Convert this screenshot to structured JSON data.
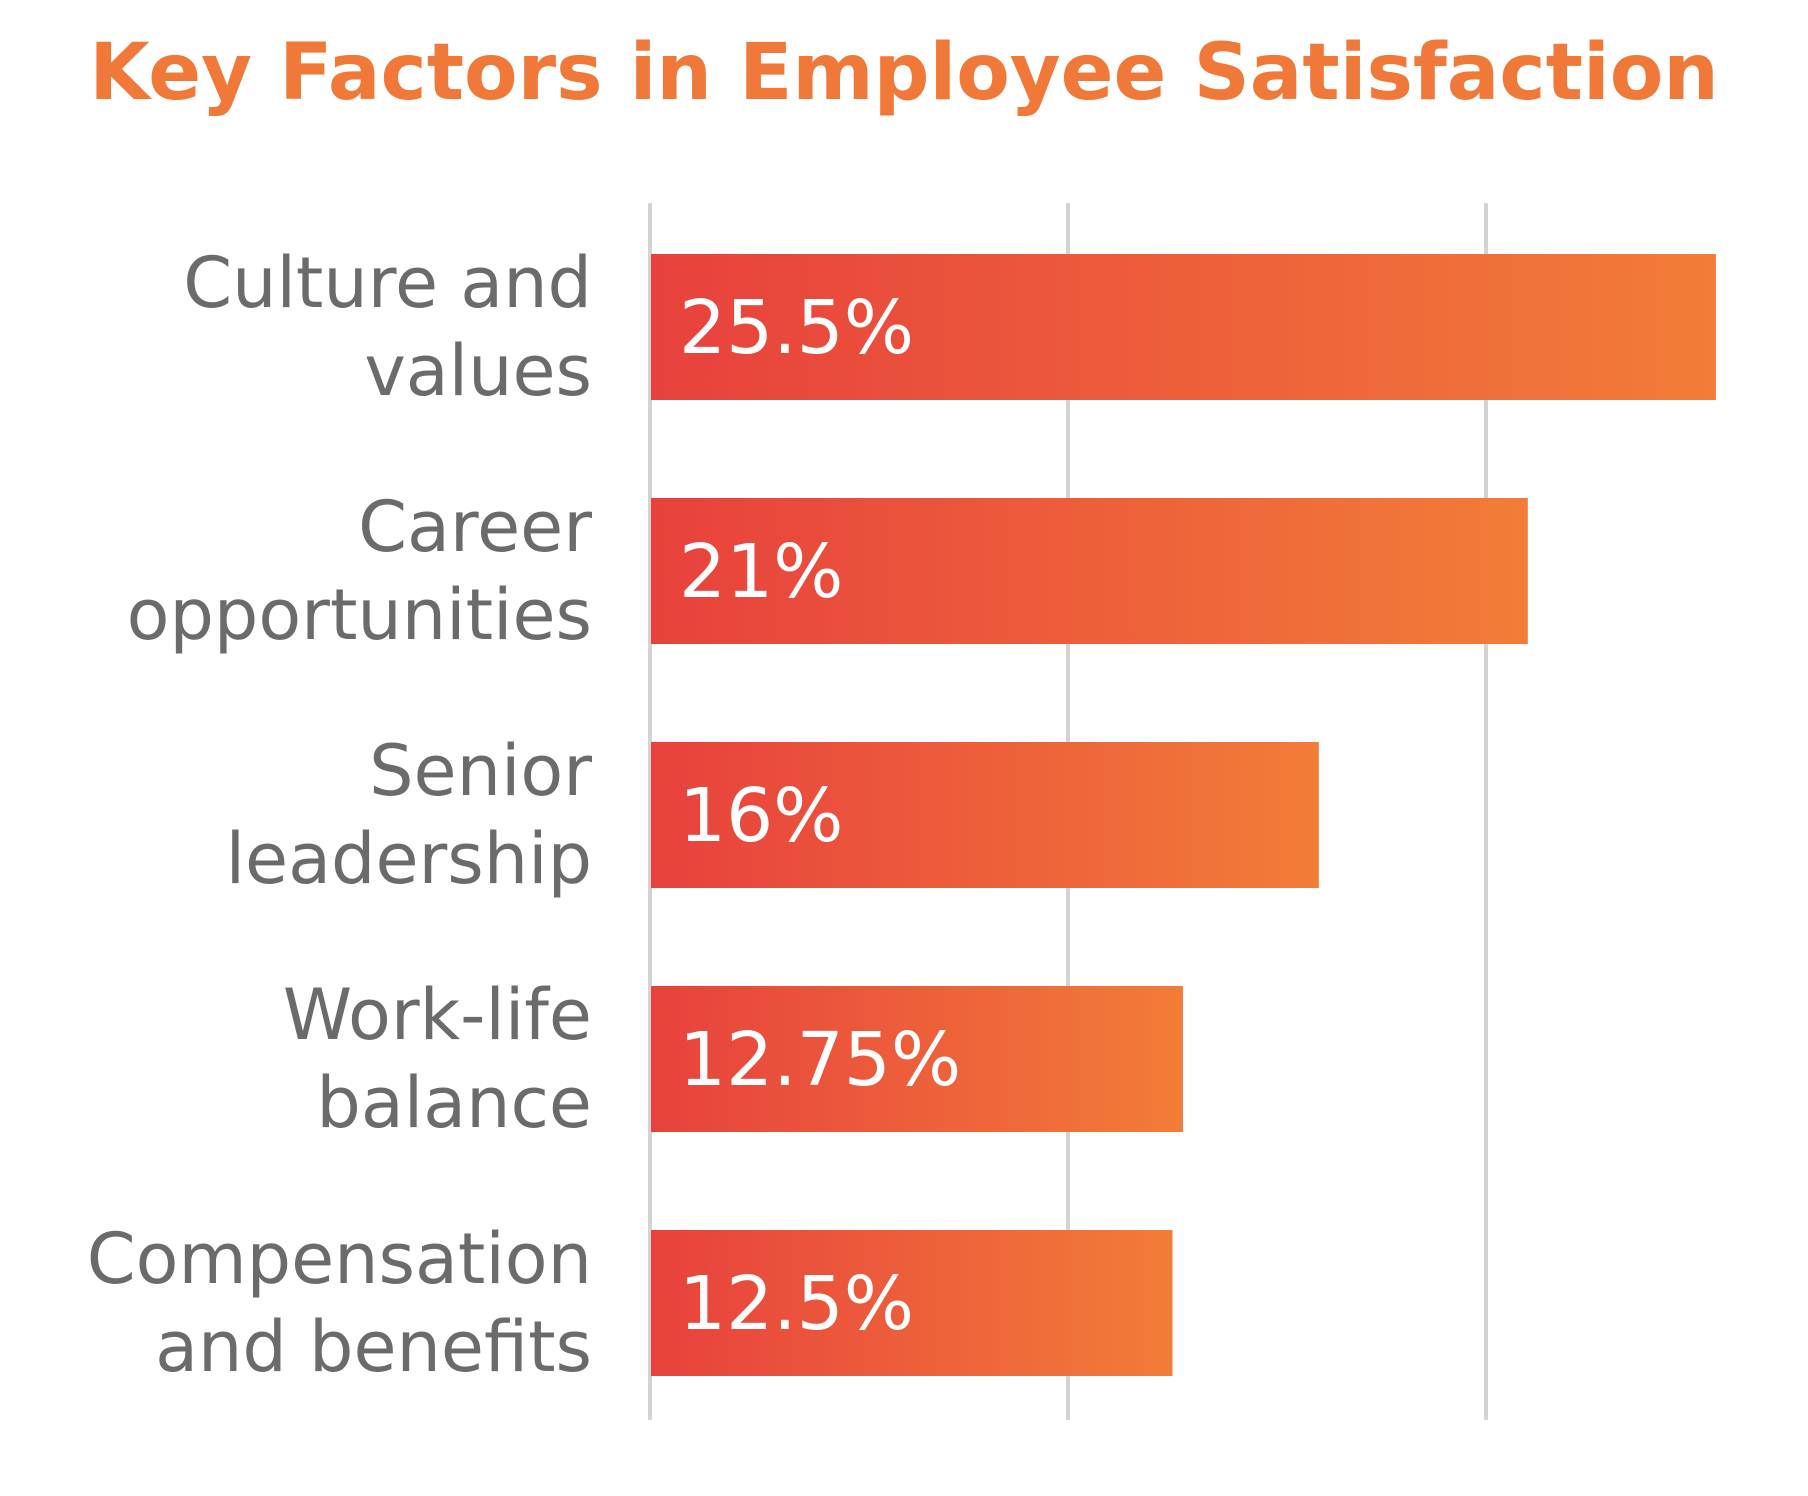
{
  "colors": {
    "title": "#f0793a",
    "bar_start": "#e8413d",
    "bar_end": "#f27c38",
    "gridline": "#d3d3d3",
    "label": "#6b6b6b",
    "value_text": "#ffffff"
  },
  "chart_data": {
    "type": "bar",
    "orientation": "horizontal",
    "title": "Key Factors in Employee Satisfaction",
    "xlabel": "",
    "ylabel": "",
    "grid": true,
    "categories": [
      "Culture and values",
      "Career opportunities",
      "Senior leadership",
      "Work-life balance",
      "Compensation and benefits"
    ],
    "category_lines": [
      [
        "Culture and",
        "values"
      ],
      [
        "Career",
        "opportunities"
      ],
      [
        "Senior",
        "leadership"
      ],
      [
        "Work-life",
        "balance"
      ],
      [
        "Compensation",
        "and benefits"
      ]
    ],
    "values": [
      25.5,
      21,
      16,
      12.75,
      12.5
    ],
    "value_labels": [
      "25.5%",
      "21%",
      "16%",
      "12.75%",
      "12.5%"
    ],
    "xlim": [
      0,
      30
    ],
    "gridlines_at": [
      0,
      10,
      20
    ]
  }
}
